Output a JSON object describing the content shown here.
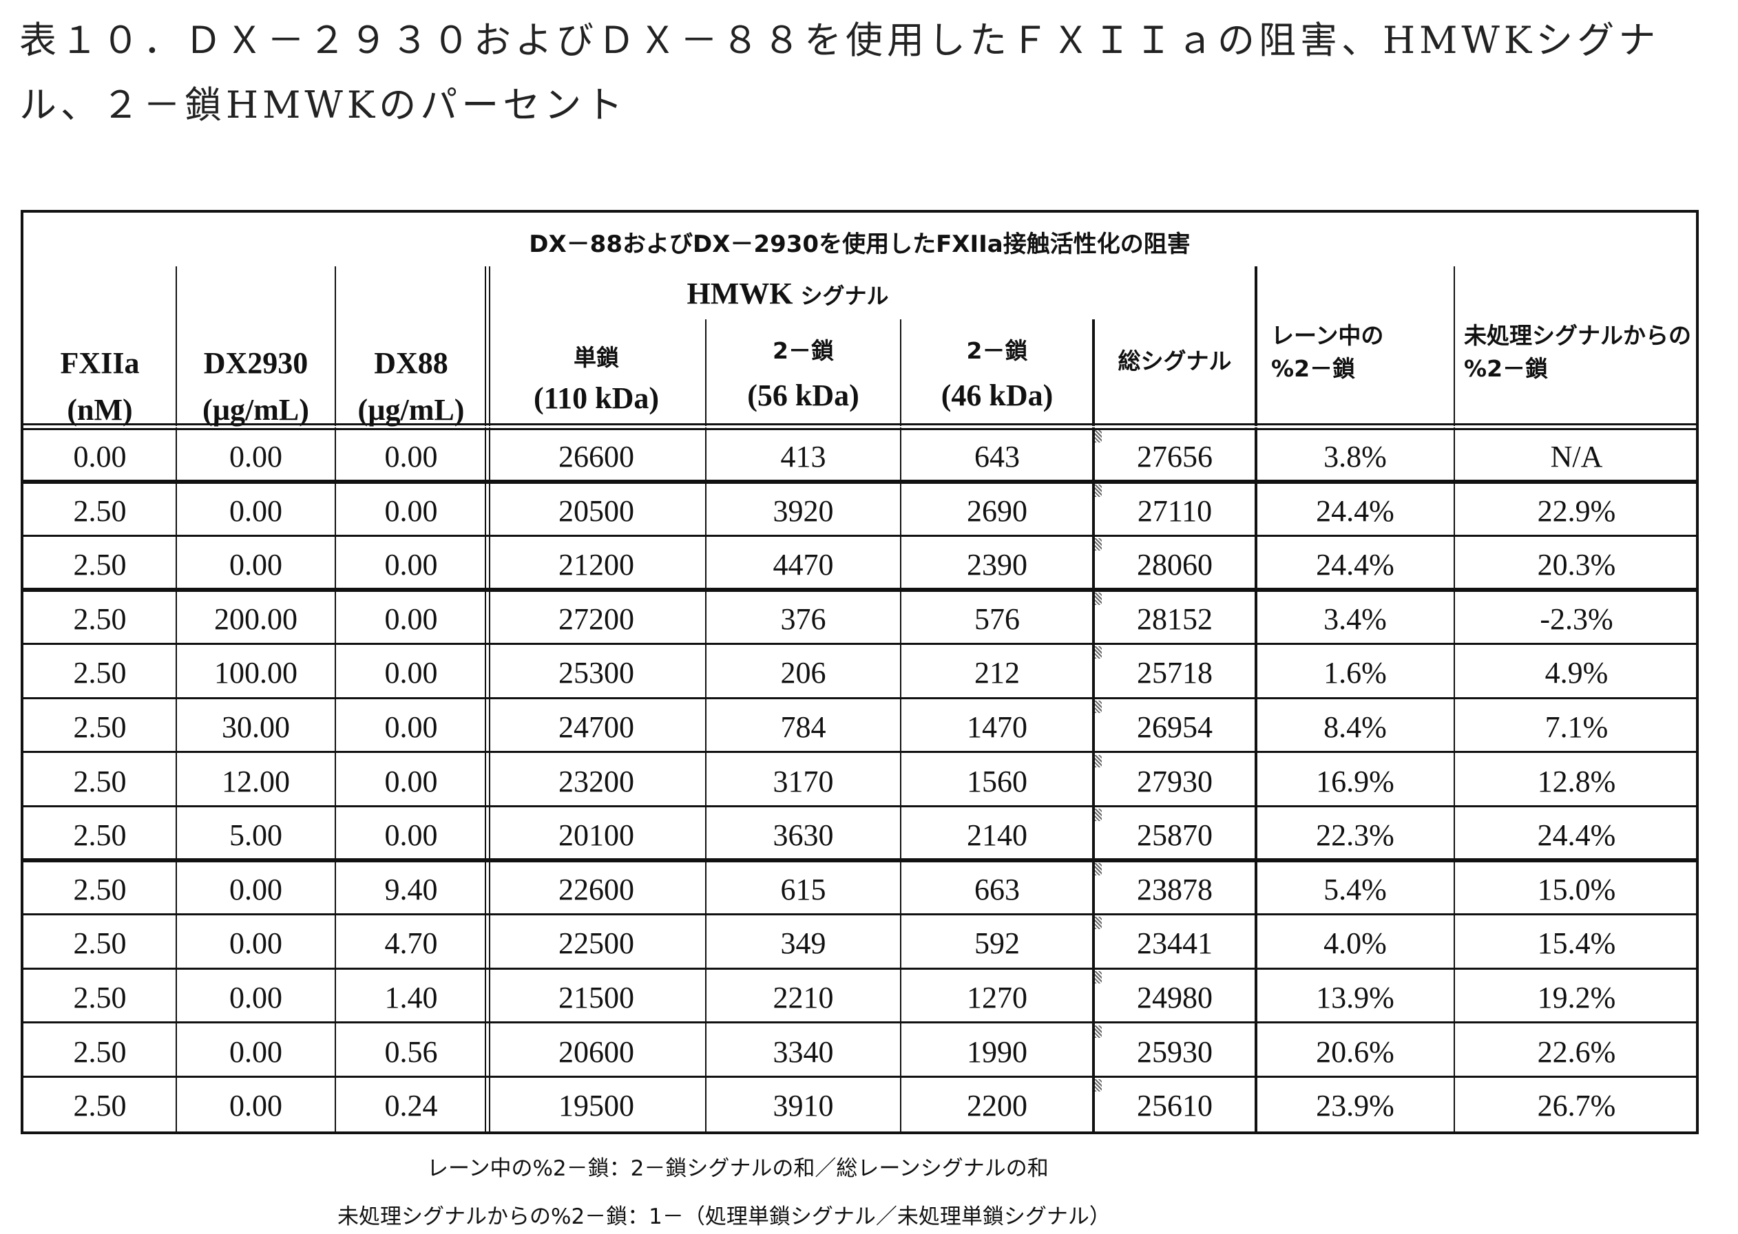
{
  "document": {
    "title_line1": "表１０．ＤＸ－２９３０およびＤＸ－８８を使用したＦＸＩＩａの阻害、HMWKシグナ",
    "title_line2": "ル、２－鎖HMWKのパーセント"
  },
  "table": {
    "caption": "DX－88およびDX－2930を使用したFXIIa接触活性化の阻害",
    "group_header": {
      "en": "HMWK",
      "jp": "シグナル"
    },
    "columns": [
      {
        "key": "fxiia",
        "line1": "FXIIa",
        "line2": "(nM)"
      },
      {
        "key": "dx2930",
        "line1": "DX2930",
        "line2": "(µg/mL)"
      },
      {
        "key": "dx88",
        "line1": "DX88",
        "line2": "(µg/mL)"
      },
      {
        "key": "single_chain",
        "line1": "単鎖",
        "line2": "(110 kDa)"
      },
      {
        "key": "two_chain_56",
        "line1": "2－鎖",
        "line2": "(56 kDa)"
      },
      {
        "key": "two_chain_46",
        "line1": "2－鎖",
        "line2": "(46 kDa)"
      },
      {
        "key": "total_signal",
        "line1": "総シグナル",
        "line2": ""
      },
      {
        "key": "pct_in_lane",
        "line1": "レーン中の",
        "line2": "%2－鎖"
      },
      {
        "key": "pct_from_untreated",
        "line1": "未処理シグナルからの",
        "line2": "%2－鎖"
      }
    ],
    "rows": [
      [
        "0.00",
        "0.00",
        "0.00",
        "26600",
        "413",
        "643",
        "27656",
        "3.8%",
        "N/A"
      ],
      [
        "2.50",
        "0.00",
        "0.00",
        "20500",
        "3920",
        "2690",
        "27110",
        "24.4%",
        "22.9%"
      ],
      [
        "2.50",
        "0.00",
        "0.00",
        "21200",
        "4470",
        "2390",
        "28060",
        "24.4%",
        "20.3%"
      ],
      [
        "2.50",
        "200.00",
        "0.00",
        "27200",
        "376",
        "576",
        "28152",
        "3.4%",
        "-2.3%"
      ],
      [
        "2.50",
        "100.00",
        "0.00",
        "25300",
        "206",
        "212",
        "25718",
        "1.6%",
        "4.9%"
      ],
      [
        "2.50",
        "30.00",
        "0.00",
        "24700",
        "784",
        "1470",
        "26954",
        "8.4%",
        "7.1%"
      ],
      [
        "2.50",
        "12.00",
        "0.00",
        "23200",
        "3170",
        "1560",
        "27930",
        "16.9%",
        "12.8%"
      ],
      [
        "2.50",
        "5.00",
        "0.00",
        "20100",
        "3630",
        "2140",
        "25870",
        "22.3%",
        "24.4%"
      ],
      [
        "2.50",
        "0.00",
        "9.40",
        "22600",
        "615",
        "663",
        "23878",
        "5.4%",
        "15.0%"
      ],
      [
        "2.50",
        "0.00",
        "4.70",
        "22500",
        "349",
        "592",
        "23441",
        "4.0%",
        "15.4%"
      ],
      [
        "2.50",
        "0.00",
        "1.40",
        "21500",
        "2210",
        "1270",
        "24980",
        "13.9%",
        "19.2%"
      ],
      [
        "2.50",
        "0.00",
        "0.56",
        "20600",
        "3340",
        "1990",
        "25930",
        "20.6%",
        "22.6%"
      ],
      [
        "2.50",
        "0.00",
        "0.24",
        "19500",
        "3910",
        "2200",
        "25610",
        "23.9%",
        "26.7%"
      ]
    ]
  },
  "footnotes": [
    "レーン中の%2－鎖：2－鎖シグナルの和／総レーンシグナルの和",
    "未処理シグナルからの%2－鎖：1－（処理単鎖シグナル／未処理単鎖シグナル）"
  ]
}
